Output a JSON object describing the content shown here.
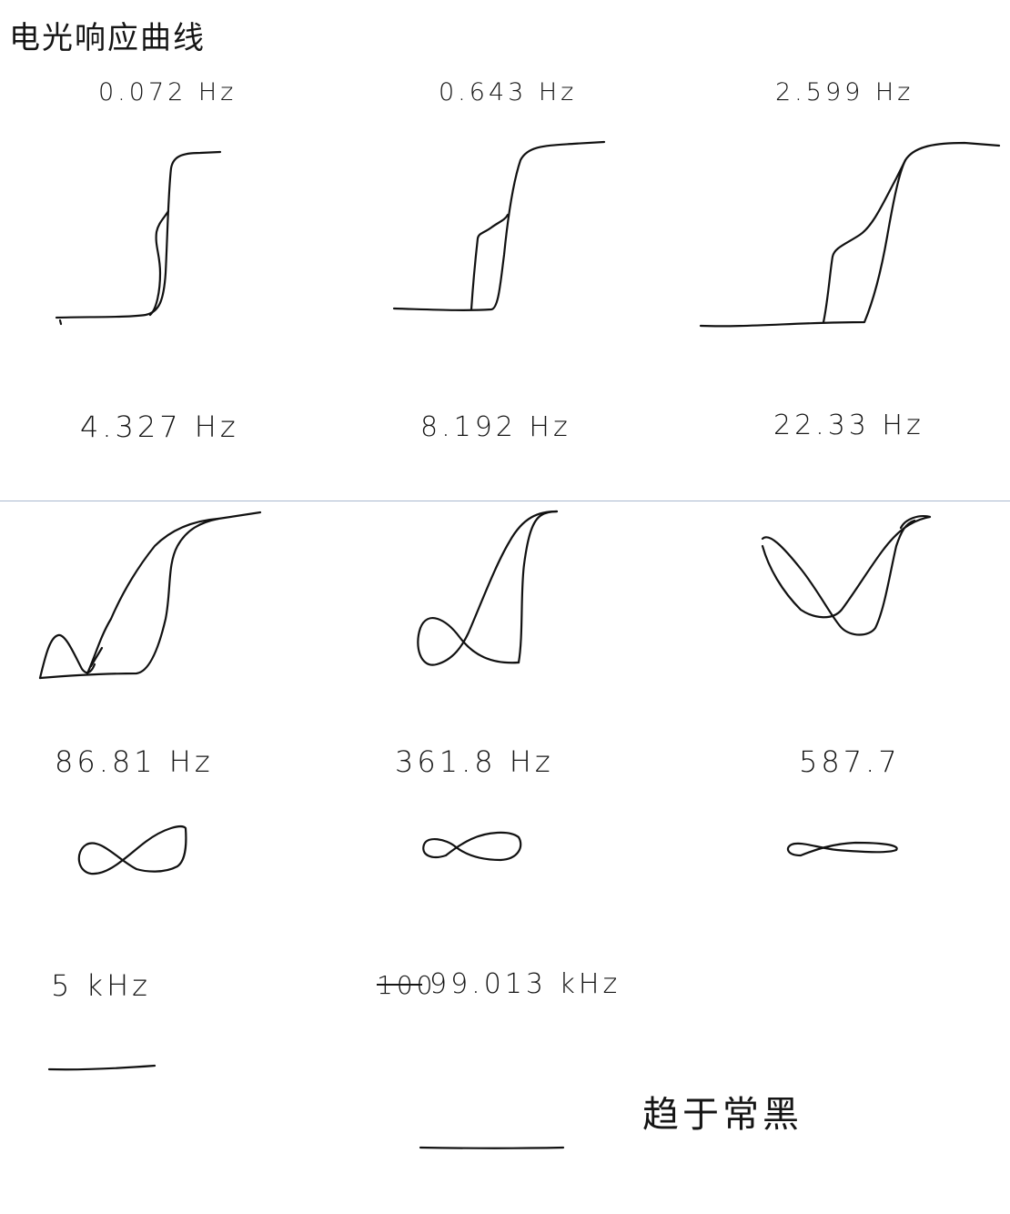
{
  "title": "电光响应曲线",
  "panels": [
    {
      "freq": "0.072 Hz",
      "curve": "steep-hysteresis-step"
    },
    {
      "freq": "0.643 Hz",
      "curve": "hysteresis-step"
    },
    {
      "freq": "2.599 Hz",
      "curve": "wide-hysteresis-step"
    },
    {
      "freq": "4.327 Hz",
      "curve": "s-curve-with-lobe"
    },
    {
      "freq": "8.192 Hz",
      "curve": "figure-eight-tall"
    },
    {
      "freq": "22.33 Hz",
      "curve": "v-shaped-loop"
    },
    {
      "freq": "86.81 Hz",
      "curve": "figure-eight"
    },
    {
      "freq": "361.8 Hz",
      "curve": "flat-figure-eight"
    },
    {
      "freq": "587.7",
      "curve": "very-flat-loop"
    },
    {
      "freq": "5 kHz",
      "curve": "flat-line"
    },
    {
      "freq": "99.013 kHz",
      "strikeout": "100",
      "curve": "flat-line"
    }
  ],
  "note": "趋于常黑",
  "colors": {
    "ink": "#111111",
    "divider": "#a9b8cf",
    "background": "#ffffff"
  }
}
